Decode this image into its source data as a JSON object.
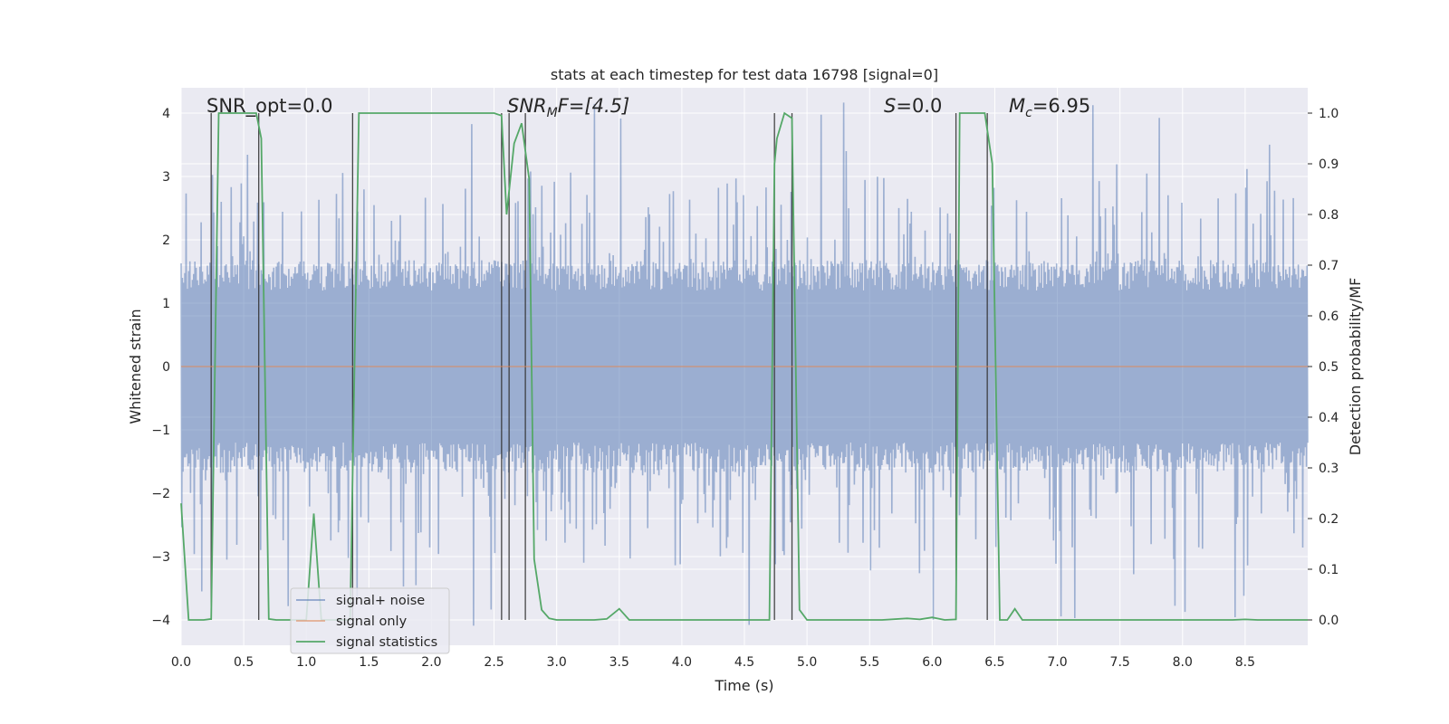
{
  "chart_data": {
    "type": "line",
    "title": "stats at each timestep for test data 16798 [signal=0]",
    "xlabel": "Time (s)",
    "ylabel": "Whitened strain",
    "ylabel_right": "Detection probability/MF",
    "xlim": [
      0.0,
      9.0
    ],
    "ylim": [
      -4.4,
      4.4
    ],
    "ylim_right": [
      -0.05,
      1.05
    ],
    "x_ticks": [
      "0.0",
      "0.5",
      "1.0",
      "1.5",
      "2.0",
      "2.5",
      "3.0",
      "3.5",
      "4.0",
      "4.5",
      "5.0",
      "5.5",
      "6.0",
      "6.5",
      "7.0",
      "7.5",
      "8.0",
      "8.5"
    ],
    "y_ticks": [
      "−4",
      "−3",
      "−2",
      "−1",
      "0",
      "1",
      "2",
      "3",
      "4"
    ],
    "y_ticks_right": [
      "0.0",
      "0.1",
      "0.2",
      "0.3",
      "0.4",
      "0.5",
      "0.6",
      "0.7",
      "0.8",
      "0.9",
      "1.0"
    ],
    "grid": true,
    "legend_position": "lower-left",
    "annotations": {
      "snr_opt": "SNR_opt=0.0",
      "snr_mf_main": "SNR",
      "snr_mf_sub": "M",
      "snr_mf_tail": "F=[4.5]",
      "s": "S",
      "s_tail": "=0.0",
      "mc_main": "M",
      "mc_sub": "c",
      "mc_tail": "=6.95"
    },
    "vertical_markers": [
      0.24,
      0.62,
      1.37,
      2.56,
      2.62,
      2.75,
      4.74,
      4.88,
      6.19,
      6.44
    ],
    "series": [
      {
        "name": "signal+ noise",
        "color": "#4c72b0",
        "noise_envelope": {
          "dense_band": [
            -1.6,
            1.6
          ],
          "typical_peak": 3.0,
          "max_peak": 4.2
        }
      },
      {
        "name": "signal only",
        "color": "#dd8452",
        "values_flat": 0.0
      },
      {
        "name": "signal statistics",
        "color": "#55a868",
        "axis": "right",
        "x": [
          0.0,
          0.06,
          0.12,
          0.18,
          0.24,
          0.3,
          0.36,
          0.42,
          0.48,
          0.54,
          0.6,
          0.64,
          0.7,
          0.76,
          0.82,
          0.88,
          0.94,
          1.0,
          1.06,
          1.12,
          1.18,
          1.24,
          1.3,
          1.35,
          1.42,
          1.48,
          1.54,
          1.6,
          1.7,
          1.8,
          1.9,
          2.0,
          2.1,
          2.2,
          2.3,
          2.4,
          2.5,
          2.56,
          2.6,
          2.66,
          2.72,
          2.78,
          2.82,
          2.88,
          2.94,
          3.0,
          3.1,
          3.2,
          3.3,
          3.4,
          3.5,
          3.58,
          3.64,
          3.7,
          3.8,
          3.9,
          4.0,
          4.2,
          4.4,
          4.6,
          4.7,
          4.74,
          4.76,
          4.82,
          4.88,
          4.94,
          5.0,
          5.2,
          5.4,
          5.6,
          5.8,
          5.9,
          6.0,
          6.1,
          6.19,
          6.22,
          6.3,
          6.36,
          6.42,
          6.48,
          6.54,
          6.6,
          6.66,
          6.72,
          6.8,
          7.0,
          7.5,
          8.0,
          8.4,
          8.5,
          8.6,
          9.0
        ],
        "values": [
          0.23,
          0.0,
          0.0,
          0.0,
          0.002,
          1.0,
          1.0,
          1.0,
          1.0,
          1.0,
          1.0,
          0.95,
          0.002,
          0.0,
          0.0,
          0.0,
          0.0,
          0.0,
          0.21,
          0.0,
          0.0,
          0.0,
          0.0,
          0.0,
          1.0,
          1.0,
          1.0,
          1.0,
          1.0,
          1.0,
          1.0,
          1.0,
          1.0,
          1.0,
          1.0,
          1.0,
          1.0,
          0.995,
          0.8,
          0.94,
          0.98,
          0.87,
          0.12,
          0.02,
          0.003,
          0.0,
          0.0,
          0.0,
          0.0,
          0.002,
          0.022,
          0.0,
          0.0,
          0.0,
          0.0,
          0.0,
          0.0,
          0.0,
          0.0,
          0.0,
          0.0,
          0.9,
          0.95,
          1.0,
          0.99,
          0.02,
          0.0,
          0.0,
          0.0,
          0.0,
          0.003,
          0.001,
          0.005,
          0.0,
          0.001,
          1.0,
          1.0,
          1.0,
          1.0,
          0.9,
          0.0,
          0.0,
          0.022,
          0.0,
          0.0,
          0.0,
          0.0,
          0.0,
          0.0,
          0.001,
          0.0,
          0.0
        ]
      }
    ]
  },
  "legend": {
    "items": [
      {
        "label": "signal+ noise",
        "color": "#4c72b0"
      },
      {
        "label": "signal only",
        "color": "#dd8452"
      },
      {
        "label": "signal statistics",
        "color": "#55a868"
      }
    ]
  },
  "colors": {
    "plot_background": "#eaeaf2",
    "grid": "#ffffff",
    "marker_lines": "#333333"
  }
}
